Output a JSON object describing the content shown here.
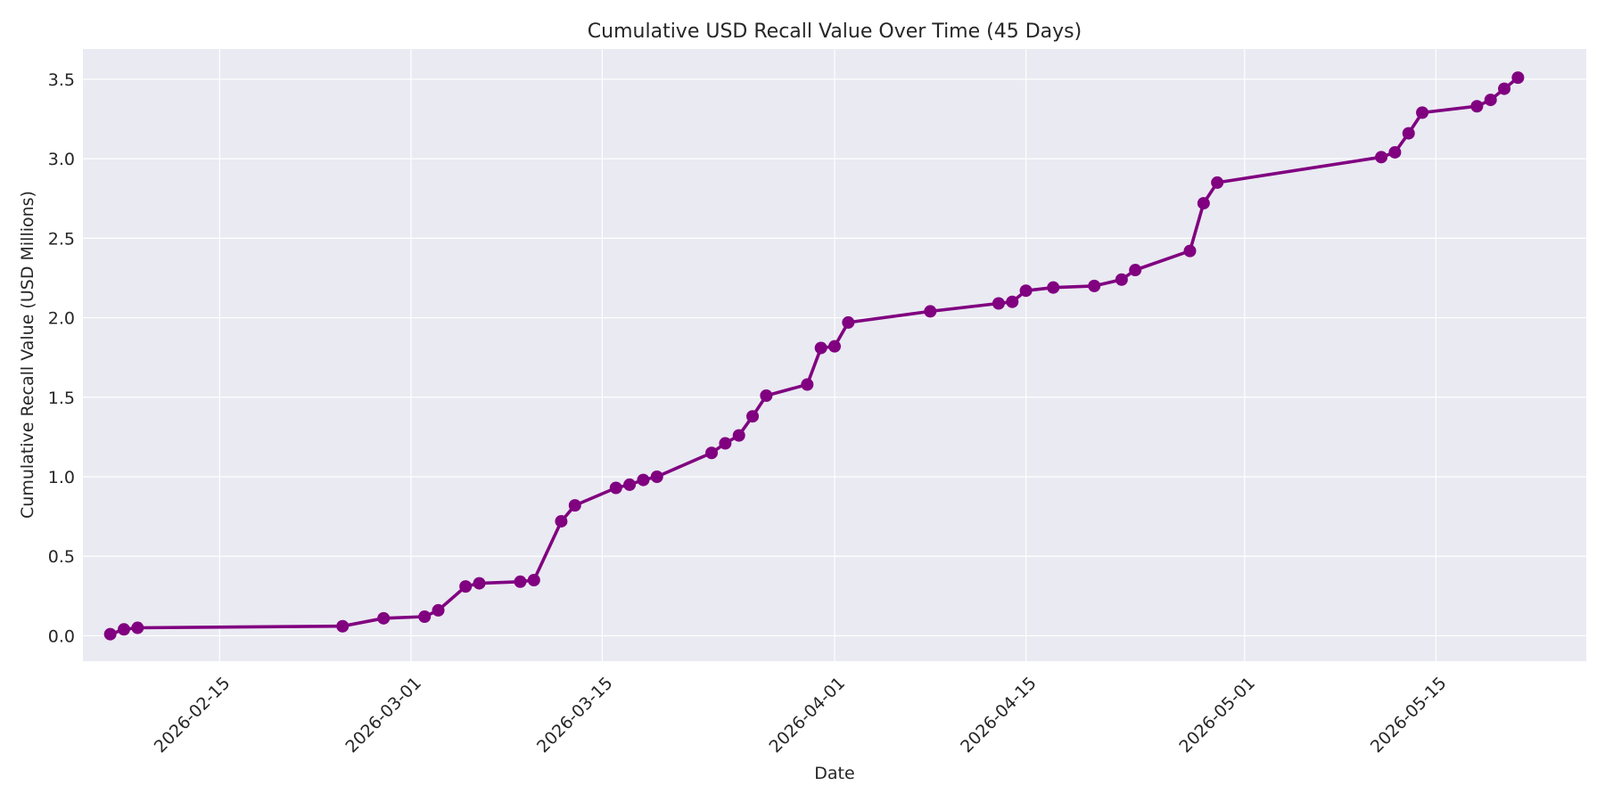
{
  "chart_data": {
    "type": "line",
    "title": "Cumulative USD Recall Value Over Time (45 Days)",
    "xlabel": "Date",
    "ylabel": "Cumulative Recall Value (USD Millions)",
    "x_tick_labels": [
      "2026-02-15",
      "2026-03-01",
      "2026-03-15",
      "2026-04-01",
      "2026-04-15",
      "2026-05-01",
      "2026-05-15"
    ],
    "y_ticks": [
      0.0,
      0.5,
      1.0,
      1.5,
      2.0,
      2.5,
      3.0,
      3.5
    ],
    "y_tick_labels": [
      "0.0",
      "0.5",
      "1.0",
      "1.5",
      "2.0",
      "2.5",
      "3.0",
      "3.5"
    ],
    "xlim": [
      "2026-02-05",
      "2026-05-26"
    ],
    "ylim": [
      -0.16,
      3.69
    ],
    "grid": true,
    "series": [
      {
        "color": "#800080",
        "x": [
          "2026-02-07",
          "2026-02-08",
          "2026-02-09",
          "2026-02-24",
          "2026-02-27",
          "2026-03-02",
          "2026-03-03",
          "2026-03-05",
          "2026-03-06",
          "2026-03-09",
          "2026-03-10",
          "2026-03-12",
          "2026-03-13",
          "2026-03-16",
          "2026-03-17",
          "2026-03-18",
          "2026-03-19",
          "2026-03-23",
          "2026-03-24",
          "2026-03-25",
          "2026-03-26",
          "2026-03-27",
          "2026-03-30",
          "2026-03-31",
          "2026-04-01",
          "2026-04-02",
          "2026-04-08",
          "2026-04-13",
          "2026-04-14",
          "2026-04-15",
          "2026-04-17",
          "2026-04-20",
          "2026-04-22",
          "2026-04-23",
          "2026-04-27",
          "2026-04-28",
          "2026-04-29",
          "2026-05-11",
          "2026-05-12",
          "2026-05-13",
          "2026-05-14",
          "2026-05-18",
          "2026-05-19",
          "2026-05-20",
          "2026-05-21"
        ],
        "y": [
          0.01,
          0.04,
          0.05,
          0.06,
          0.11,
          0.12,
          0.16,
          0.31,
          0.33,
          0.34,
          0.35,
          0.72,
          0.82,
          0.93,
          0.95,
          0.98,
          1.0,
          1.15,
          1.21,
          1.26,
          1.38,
          1.51,
          1.58,
          1.81,
          1.82,
          1.97,
          2.04,
          2.09,
          2.1,
          2.17,
          2.19,
          2.2,
          2.24,
          2.3,
          2.42,
          2.72,
          2.85,
          3.01,
          3.04,
          3.16,
          3.29,
          3.33,
          3.37,
          3.44,
          3.51
        ]
      }
    ]
  }
}
